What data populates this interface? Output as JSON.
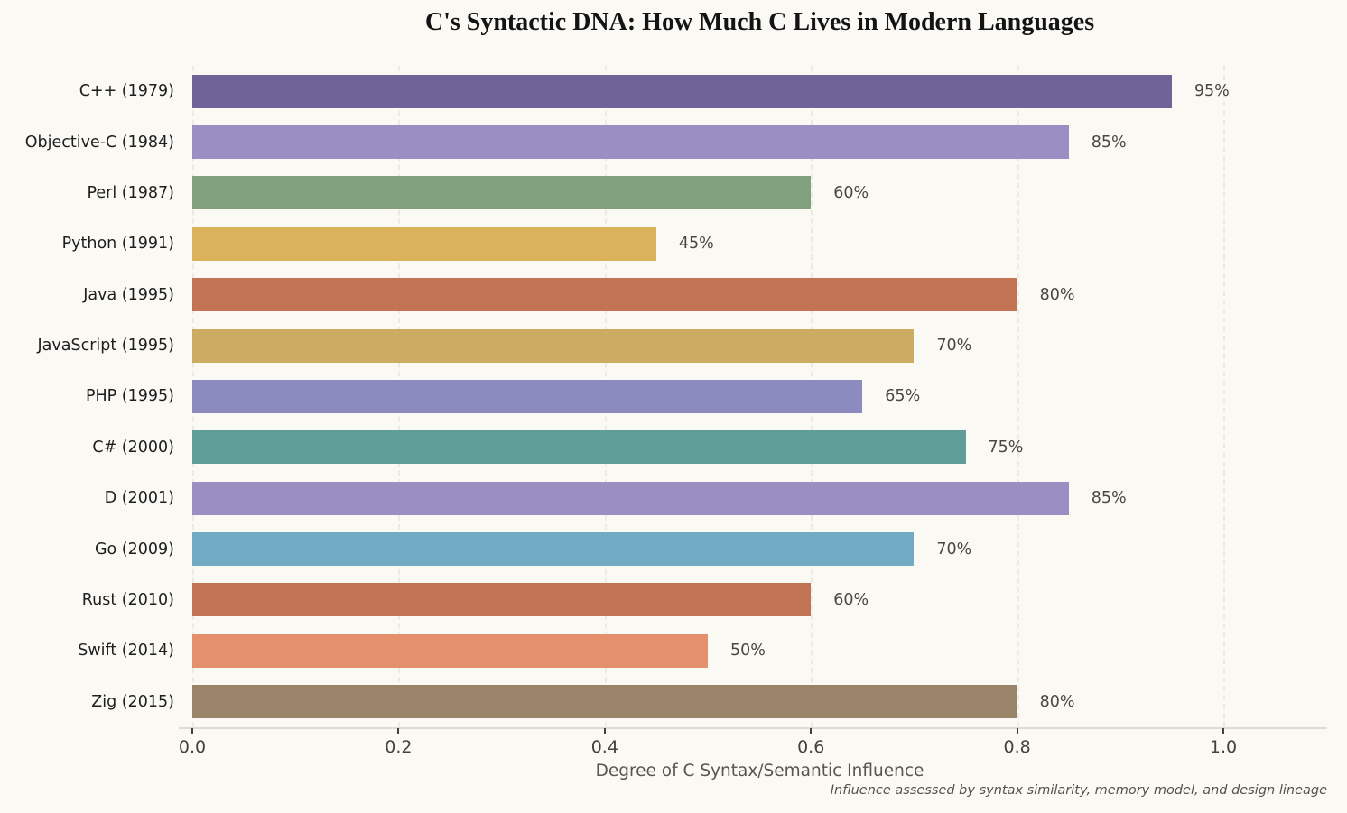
{
  "title": "C's Syntactic DNA: How Much C Lives in Modern Languages",
  "chart_data": {
    "type": "bar",
    "orientation": "horizontal",
    "title": "C's Syntactic DNA: How Much C Lives in Modern Languages",
    "xlabel": "Degree of C Syntax/Semantic Influence",
    "ylabel": "",
    "footnote": "Influence assessed by syntax similarity, memory model, and design lineage",
    "categories": [
      "C++ (1979)",
      "Objective-C (1984)",
      "Perl (1987)",
      "Python (1991)",
      "Java (1995)",
      "JavaScript (1995)",
      "PHP (1995)",
      "C# (2000)",
      "D (2001)",
      "Go (2009)",
      "Rust (2010)",
      "Swift (2014)",
      "Zig (2015)"
    ],
    "values": [
      0.95,
      0.85,
      0.6,
      0.45,
      0.8,
      0.7,
      0.65,
      0.75,
      0.85,
      0.7,
      0.6,
      0.5,
      0.8
    ],
    "value_labels": [
      "95%",
      "85%",
      "60%",
      "45%",
      "80%",
      "70%",
      "65%",
      "75%",
      "85%",
      "70%",
      "60%",
      "50%",
      "80%"
    ],
    "bar_colors": [
      "#6F6397",
      "#9B8EC3",
      "#81A17E",
      "#DBB25C",
      "#C17354",
      "#CBAC62",
      "#8B8BC0",
      "#5F9D97",
      "#9B8EC3",
      "#70ABC3",
      "#C17354",
      "#E4906C",
      "#9A8469"
    ],
    "x_ticks": [
      "0.0",
      "0.2",
      "0.4",
      "0.6",
      "0.8",
      "1.0"
    ],
    "x_tick_values": [
      0.0,
      0.2,
      0.4,
      0.6,
      0.8,
      1.0
    ],
    "xlim": [
      0,
      1.1
    ],
    "grid": "vertical-dashed",
    "legend": "none",
    "background_color": "#FAF9F3",
    "gridline_color": "#EDEAE2",
    "tick_text_color": "#45423E",
    "value_text_color": "#4A4742"
  }
}
